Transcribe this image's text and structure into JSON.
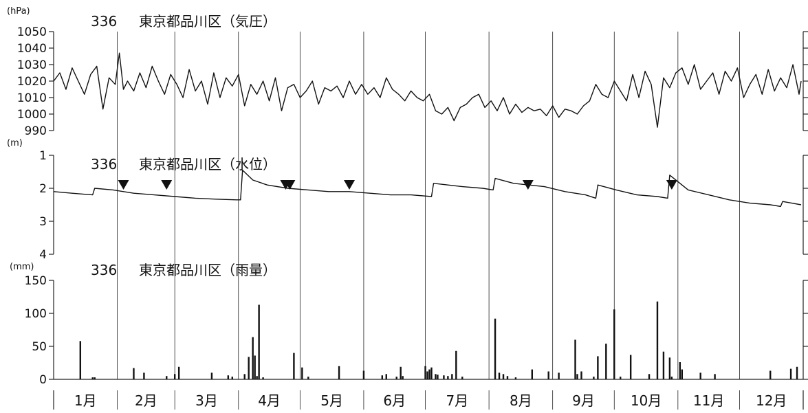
{
  "chart_data": [
    {
      "type": "line",
      "station": "336",
      "title": "東京都品川区（気圧）",
      "unit": "(hPa)",
      "ylim": [
        990,
        1050
      ],
      "yticks": [
        990,
        1000,
        1010,
        1020,
        1030,
        1040,
        1050
      ],
      "y_inverted": false,
      "grid": false,
      "x_unit": "day of year",
      "series": [
        {
          "x": [
            1,
            4,
            7,
            10,
            13,
            16,
            19,
            22,
            25,
            28,
            31,
            33,
            35,
            37,
            40,
            43,
            46,
            49,
            52,
            55,
            58,
            61,
            64,
            67,
            70,
            73,
            76,
            79,
            82,
            85,
            88,
            91,
            94,
            97,
            100,
            103,
            106,
            109,
            112,
            115,
            118,
            121,
            124,
            127,
            130,
            133,
            136,
            139,
            142,
            145,
            148,
            151,
            154,
            157,
            160,
            163,
            166,
            169,
            172,
            175,
            178,
            181,
            184,
            187,
            190,
            193,
            196,
            199,
            202,
            205,
            208,
            211,
            214,
            217,
            220,
            223,
            226,
            229,
            232,
            235,
            238,
            241,
            244,
            247,
            250,
            253,
            256,
            259,
            262,
            265,
            268,
            271,
            274,
            277,
            280,
            283,
            286,
            289,
            292,
            295,
            298,
            301,
            304,
            307,
            310,
            313,
            316,
            319,
            322,
            325,
            328,
            331,
            334,
            337,
            340,
            343,
            346,
            349,
            352,
            355,
            358,
            361,
            364,
            365
          ],
          "values": [
            1020,
            1025,
            1015,
            1028,
            1020,
            1012,
            1024,
            1029,
            1003,
            1022,
            1018,
            1037,
            1015,
            1020,
            1014,
            1025,
            1016,
            1029,
            1020,
            1012,
            1024,
            1018,
            1010,
            1027,
            1014,
            1020,
            1006,
            1025,
            1010,
            1022,
            1017,
            1024,
            1005,
            1018,
            1012,
            1020,
            1008,
            1022,
            1002,
            1016,
            1018,
            1010,
            1014,
            1020,
            1006,
            1016,
            1014,
            1017,
            1010,
            1020,
            1012,
            1018,
            1012,
            1016,
            1010,
            1022,
            1015,
            1012,
            1008,
            1014,
            1010,
            1008,
            1012,
            1002,
            1000,
            1004,
            996,
            1004,
            1006,
            1010,
            1012,
            1004,
            1008,
            1002,
            1010,
            1000,
            1006,
            1001,
            1004,
            1002,
            1003,
            999,
            1005,
            998,
            1003,
            1002,
            1000,
            1005,
            1008,
            1018,
            1012,
            1010,
            1020,
            1014,
            1008,
            1024,
            1010,
            1026,
            1018,
            992,
            1022,
            1016,
            1025,
            1028,
            1018,
            1030,
            1015,
            1020,
            1025,
            1012,
            1026,
            1020,
            1028,
            1010,
            1018,
            1024,
            1012,
            1027,
            1014,
            1022,
            1016,
            1030,
            1012,
            1020
          ]
        }
      ]
    },
    {
      "type": "line",
      "station": "336",
      "title": "東京都品川区（水位）",
      "unit": "(m)",
      "ylim": [
        1,
        4
      ],
      "yticks": [
        1,
        2,
        3,
        4
      ],
      "y_inverted": true,
      "grid": false,
      "x_unit": "day of year",
      "markers": [
        35,
        56,
        114,
        116,
        145,
        232,
        302
      ],
      "series": [
        {
          "x": [
            1,
            10,
            20,
            21,
            30,
            40,
            50,
            60,
            70,
            80,
            90,
            92,
            93,
            98,
            105,
            115,
            125,
            135,
            145,
            155,
            165,
            175,
            185,
            186,
            200,
            210,
            215,
            216,
            225,
            240,
            250,
            260,
            265,
            266,
            275,
            285,
            295,
            300,
            301,
            310,
            320,
            330,
            340,
            350,
            355,
            356,
            365
          ],
          "values": [
            2.1,
            2.15,
            2.2,
            2.0,
            2.05,
            2.15,
            2.2,
            2.25,
            2.3,
            2.33,
            2.35,
            2.35,
            1.45,
            1.75,
            1.9,
            2.0,
            2.05,
            2.1,
            2.1,
            2.15,
            2.2,
            2.2,
            2.25,
            1.85,
            1.95,
            2.0,
            2.05,
            1.7,
            1.85,
            1.95,
            2.1,
            2.2,
            2.3,
            1.9,
            2.05,
            2.2,
            2.25,
            2.3,
            1.6,
            2.05,
            2.2,
            2.35,
            2.45,
            2.5,
            2.55,
            2.4,
            2.5
          ]
        }
      ]
    },
    {
      "type": "bar",
      "station": "336",
      "title": "東京都品川区（雨量）",
      "unit": "(mm)",
      "ylim": [
        0,
        150
      ],
      "yticks": [
        0,
        50,
        100,
        150
      ],
      "grid": false,
      "x_unit": "day of year",
      "series": [
        {
          "x": [
            14,
            20,
            21,
            40,
            45,
            56,
            60,
            62,
            78,
            86,
            88,
            94,
            96,
            98,
            99,
            100,
            101,
            103,
            118,
            122,
            125,
            140,
            152,
            161,
            163,
            168,
            170,
            171,
            182,
            183,
            184,
            185,
            187,
            188,
            191,
            193,
            195,
            197,
            200,
            216,
            218,
            220,
            222,
            226,
            234,
            242,
            247,
            255,
            256,
            258,
            264,
            266,
            270,
            274,
            277,
            282,
            291,
            295,
            298,
            301,
            302,
            306,
            307,
            316,
            323,
            350,
            360,
            363
          ],
          "values": [
            58,
            3,
            3,
            17,
            10,
            5,
            8,
            19,
            10,
            6,
            4,
            8,
            34,
            64,
            36,
            5,
            113,
            3,
            40,
            18,
            4,
            20,
            13,
            6,
            8,
            4,
            19,
            5,
            20,
            12,
            15,
            18,
            8,
            7,
            6,
            5,
            8,
            43,
            4,
            92,
            10,
            8,
            5,
            3,
            15,
            12,
            10,
            60,
            8,
            12,
            4,
            35,
            54,
            106,
            4,
            37,
            8,
            118,
            42,
            33,
            4,
            26,
            15,
            10,
            8,
            13,
            16,
            19
          ]
        }
      ]
    }
  ],
  "x_axis": {
    "months": [
      "1月",
      "2月",
      "3月",
      "4月",
      "5月",
      "6月",
      "7月",
      "8月",
      "9月",
      "10月",
      "11月",
      "12月"
    ],
    "month_start_days": [
      1,
      32,
      60,
      91,
      121,
      152,
      182,
      213,
      244,
      274,
      305,
      335
    ],
    "days_in_year": 365
  }
}
